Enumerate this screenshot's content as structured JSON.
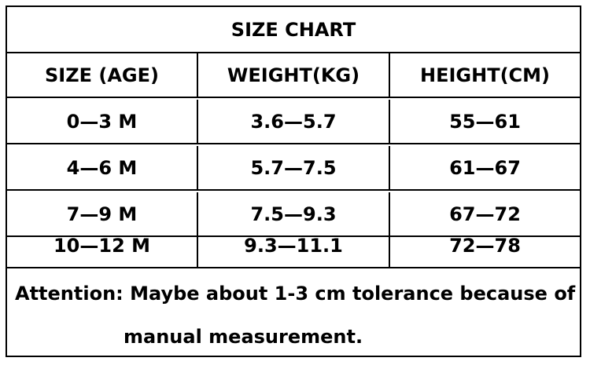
{
  "title": "SIZE CHART",
  "headers": [
    "SIZE (AGE)",
    "WEIGHT(KG)",
    "HEIGHT(CM)"
  ],
  "rows": [
    [
      "0—3 M",
      "3.6—5.7",
      "55—61"
    ],
    [
      "4—6 M",
      "5.7—7.5",
      "61—67"
    ],
    [
      "7—9 M",
      "7.5—9.3",
      "67—72"
    ],
    [
      "10—12 M",
      "9.3—11.1",
      "72—78"
    ]
  ],
  "note": {
    "line1": "Attention: Maybe about 1-3 cm tolerance because of",
    "line2": "manual measurement."
  }
}
